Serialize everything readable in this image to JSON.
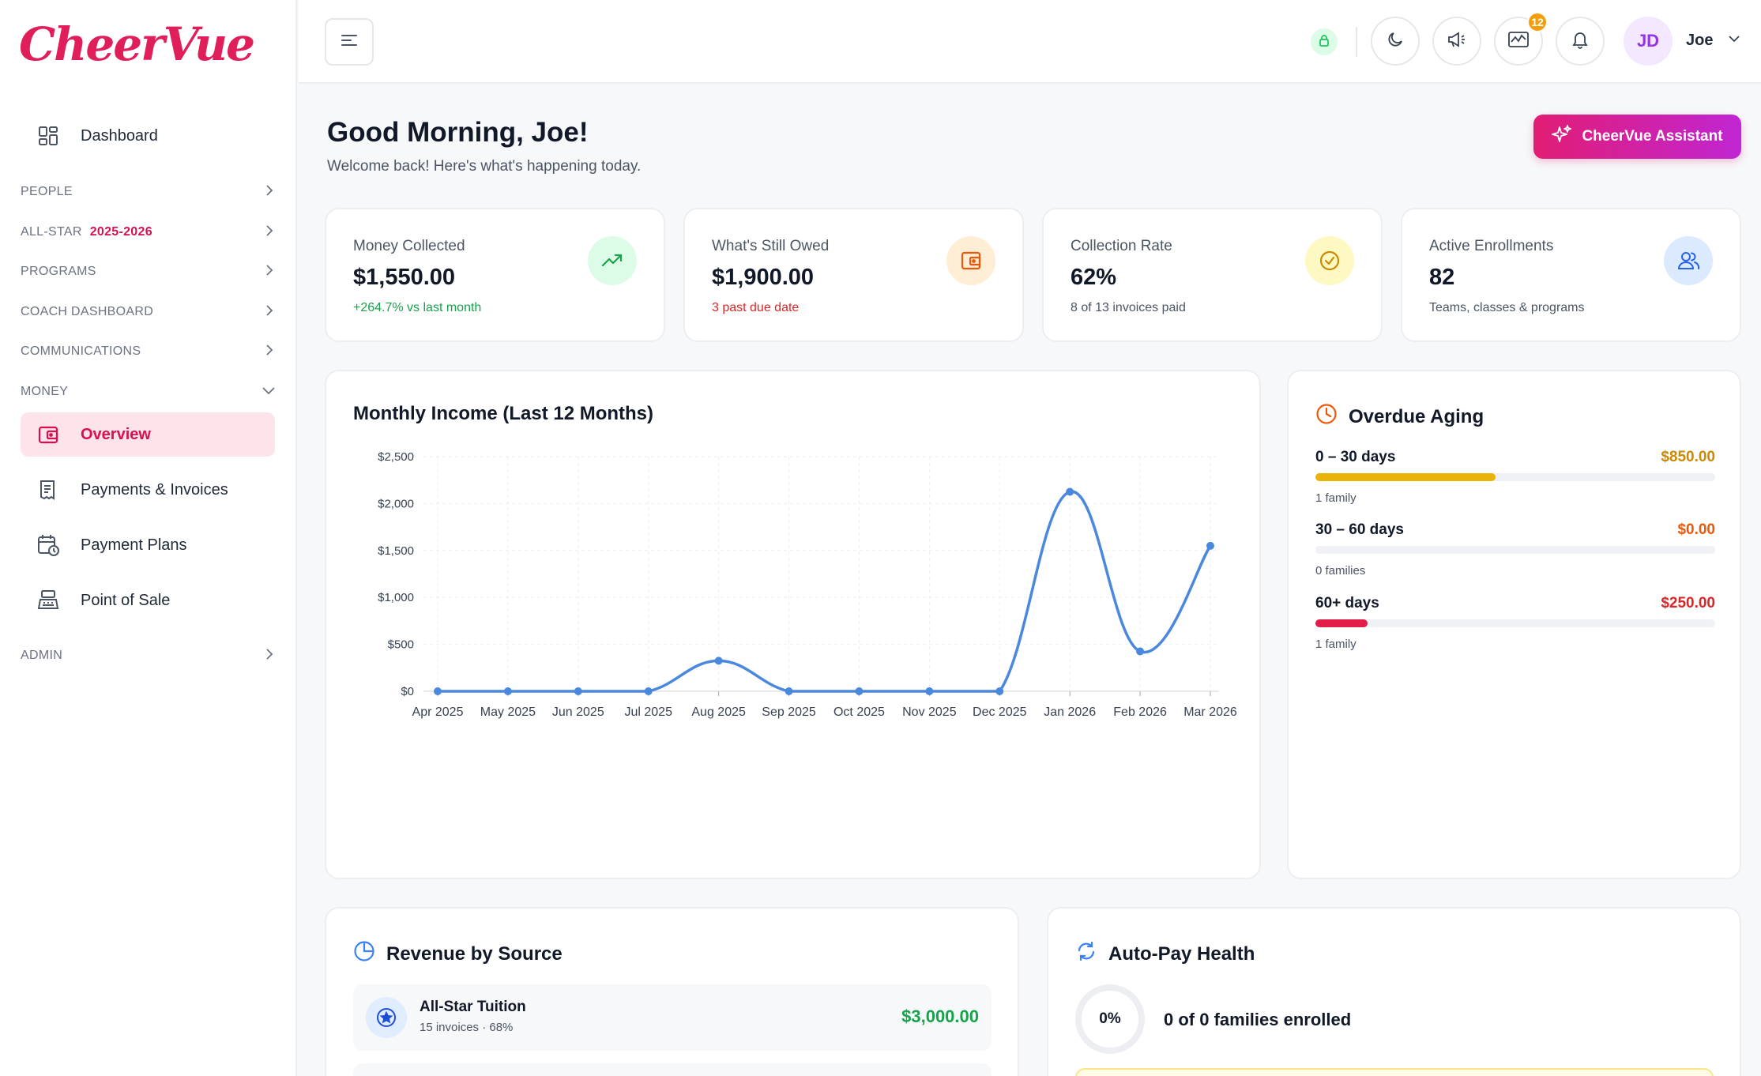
{
  "app": {
    "logo": "CheerVue"
  },
  "sidebar": {
    "dashboard_label": "Dashboard",
    "sections": {
      "people": "PEOPLE",
      "allstar": "ALL-STAR",
      "allstar_season": "2025-2026",
      "programs": "PROGRAMS",
      "coach": "COACH DASHBOARD",
      "communications": "COMMUNICATIONS",
      "money": "MONEY",
      "admin": "ADMIN"
    },
    "money_items": [
      {
        "label": "Overview",
        "icon": "wallet-icon",
        "active": true
      },
      {
        "label": "Payments & Invoices",
        "icon": "receipt-icon"
      },
      {
        "label": "Payment Plans",
        "icon": "calendar-clock-icon"
      },
      {
        "label": "Point of Sale",
        "icon": "register-icon"
      }
    ]
  },
  "topbar": {
    "notifications_badge": "12",
    "avatar_initials": "JD",
    "user_name": "Joe",
    "colors": {
      "lock_bg": "#dcfce7",
      "badge": "#f59e0b",
      "avatar_bg": "#f3e8ff",
      "avatar_text": "#9333ea"
    }
  },
  "header": {
    "greeting": "Good Morning, Joe!",
    "welcome": "Welcome back! Here's what's happening today.",
    "assistant_label": "CheerVue Assistant"
  },
  "stats": [
    {
      "label": "Money Collected",
      "value": "$1,550.00",
      "sub": "+264.7% vs last month",
      "icon": "trend-up-icon",
      "icon_bg": "#dcfce7",
      "icon_color": "#16a34a",
      "sub_tone": "green"
    },
    {
      "label": "What's Still Owed",
      "value": "$1,900.00",
      "sub": "3 past due date",
      "icon": "wallet-icon",
      "icon_bg": "#ffedd5",
      "icon_color": "#ea580c",
      "sub_tone": "red"
    },
    {
      "label": "Collection Rate",
      "value": "62%",
      "sub": "8 of 13 invoices paid",
      "icon": "check-circle-icon",
      "icon_bg": "#fef9c3",
      "icon_color": "#ca8a04",
      "sub_tone": "gray"
    },
    {
      "label": "Active Enrollments",
      "value": "82",
      "sub": "Teams, classes & programs",
      "icon": "users-icon",
      "icon_bg": "#dbeafe",
      "icon_color": "#2563eb",
      "sub_tone": "gray"
    }
  ],
  "income_chart": {
    "title": "Monthly Income (Last 12 Months)"
  },
  "chart_data": {
    "type": "line",
    "title": "Monthly Income (Last 12 Months)",
    "categories": [
      "Apr 2025",
      "May 2025",
      "Jun 2025",
      "Jul 2025",
      "Aug 2025",
      "Sep 2025",
      "Oct 2025",
      "Nov 2025",
      "Dec 2025",
      "Jan 2026",
      "Feb 2026",
      "Mar 2026"
    ],
    "values": [
      0,
      0,
      0,
      0,
      325,
      0,
      0,
      0,
      0,
      2125,
      425,
      1550
    ],
    "ylim": [
      0,
      2500
    ],
    "yticks": [
      0,
      500,
      1000,
      1500,
      2000,
      2500
    ],
    "ytick_labels": [
      "$0",
      "$500",
      "$1,000",
      "$1,500",
      "$2,000",
      "$2,500"
    ],
    "grid": true,
    "line_color": "#4a88dd",
    "smooth": true
  },
  "aging": {
    "title": "Overdue Aging",
    "rows": [
      {
        "label": "0 – 30 days",
        "amount": "$850.00",
        "sub": "1 family",
        "fraction": 0.45,
        "color": "#eab308",
        "amount_color": "#ca8a04"
      },
      {
        "label": "30 – 60 days",
        "amount": "$0.00",
        "sub": "0 families",
        "fraction": 0,
        "color": "#f97316",
        "amount_color": "#ea580c"
      },
      {
        "label": "60+ days",
        "amount": "$250.00",
        "sub": "1 family",
        "fraction": 0.13,
        "color": "#e11d48",
        "amount_color": "#dc2626"
      }
    ]
  },
  "revenue": {
    "title": "Revenue by Source",
    "items": [
      {
        "name": "All-Star Tuition",
        "meta": "15 invoices · 68%",
        "amount": "$3,000.00"
      }
    ]
  },
  "autopay": {
    "title": "Auto-Pay Health",
    "percent": "0%",
    "text": "0 of 0 families enrolled"
  }
}
